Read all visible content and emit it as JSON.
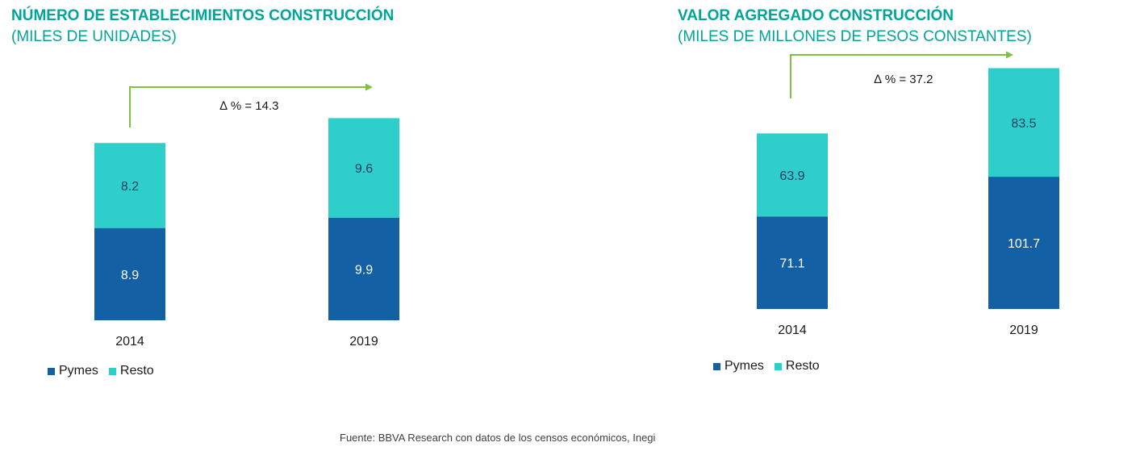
{
  "colors": {
    "pymes": "#1460A4",
    "resto": "#2ECECA",
    "arrow": "#7DC242",
    "title": "#00A59A"
  },
  "source": "Fuente: BBVA Research con datos de los censos económicos, Inegi",
  "chart_data": [
    {
      "type": "bar",
      "stacked": true,
      "title": "NÚMERO DE ESTABLECIMIENTOS CONSTRUCCIÓN",
      "subtitle": "(MILES DE UNIDADES)",
      "categories": [
        "2014",
        "2019"
      ],
      "series": [
        {
          "name": "Pymes",
          "values": [
            8.9,
            9.9
          ],
          "labels": [
            "8.9",
            "9.9"
          ]
        },
        {
          "name": "Resto",
          "values": [
            8.2,
            9.6
          ],
          "labels": [
            "8.2",
            "9.6"
          ]
        }
      ],
      "annotation": "∆ % = 14.3",
      "legend": "bottom-left",
      "grid": false
    },
    {
      "type": "bar",
      "stacked": true,
      "title": "VALOR AGREGADO CONSTRUCCIÓN",
      "subtitle": "(MILES DE MILLONES DE PESOS CONSTANTES)",
      "categories": [
        "2014",
        "2019"
      ],
      "series": [
        {
          "name": "Pymes",
          "values": [
            71.1,
            101.7
          ],
          "labels": [
            "71.1",
            "101.7"
          ]
        },
        {
          "name": "Resto",
          "values": [
            63.9,
            83.5
          ],
          "labels": [
            "63.9",
            "83.5"
          ]
        }
      ],
      "annotation": "∆ % = 37.2",
      "legend": "bottom-left",
      "grid": false
    }
  ]
}
